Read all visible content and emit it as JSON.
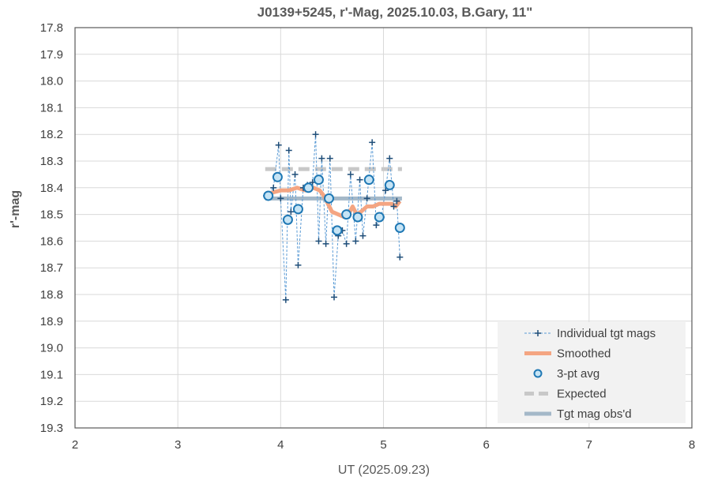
{
  "chart_data": {
    "type": "scatter",
    "title": "J0139+5245, r'-Mag, 2025.10.03, B.Gary, 11\"",
    "xlabel": "UT (2025.09.23)",
    "ylabel": "r'-mag",
    "xlim": [
      2,
      8
    ],
    "ylim": [
      17.8,
      19.3
    ],
    "y_inverted": true,
    "grid": true,
    "x_ticks": [
      "2",
      "3",
      "4",
      "5",
      "6",
      "7",
      "8"
    ],
    "y_ticks": [
      "17.8",
      "17.9",
      "18.0",
      "18.1",
      "18.2",
      "18.3",
      "18.4",
      "18.5",
      "18.6",
      "18.7",
      "18.8",
      "18.9",
      "19.0",
      "19.1",
      "19.2",
      "19.3"
    ],
    "legend_position": "bottom-right",
    "series": [
      {
        "name": "Individual tgt mags",
        "style": "dashed-line-plus-markers",
        "color": "#2e75b6",
        "x": [
          3.86,
          3.93,
          3.98,
          4.0,
          4.05,
          4.08,
          4.1,
          4.14,
          4.17,
          4.22,
          4.26,
          4.31,
          4.34,
          4.37,
          4.4,
          4.44,
          4.48,
          4.52,
          4.56,
          4.6,
          4.64,
          4.68,
          4.73,
          4.77,
          4.8,
          4.84,
          4.89,
          4.93,
          4.98,
          5.02,
          5.06,
          5.1,
          5.13,
          5.16
        ],
        "y": [
          18.43,
          18.4,
          18.24,
          18.44,
          18.82,
          18.26,
          18.49,
          18.35,
          18.69,
          18.4,
          18.39,
          18.38,
          18.2,
          18.6,
          18.29,
          18.61,
          18.29,
          18.81,
          18.58,
          18.56,
          18.61,
          18.35,
          18.6,
          18.37,
          18.58,
          18.44,
          18.23,
          18.54,
          18.51,
          18.41,
          18.29,
          18.47,
          18.45,
          18.66
        ]
      },
      {
        "name": "Smoothed",
        "style": "thick-line",
        "color": "#f4a582",
        "x": [
          3.9,
          4.0,
          4.08,
          4.16,
          4.24,
          4.32,
          4.38,
          4.42,
          4.46,
          4.5,
          4.56,
          4.62,
          4.66,
          4.7,
          4.74,
          4.78,
          4.84,
          4.9,
          4.96,
          5.02,
          5.08,
          5.12,
          5.16
        ],
        "y": [
          18.42,
          18.41,
          18.41,
          18.4,
          18.41,
          18.4,
          18.41,
          18.43,
          18.46,
          18.49,
          18.5,
          18.51,
          18.5,
          18.47,
          18.5,
          18.49,
          18.47,
          18.47,
          18.46,
          18.46,
          18.46,
          18.47,
          18.45
        ]
      },
      {
        "name": "3-pt avg",
        "style": "open-circles",
        "color": "#1f78b4",
        "fill": "#c6e4f5",
        "x": [
          3.88,
          3.97,
          4.07,
          4.17,
          4.27,
          4.37,
          4.47,
          4.55,
          4.64,
          4.75,
          4.86,
          4.96,
          5.06,
          5.16
        ],
        "y": [
          18.43,
          18.36,
          18.52,
          18.48,
          18.4,
          18.37,
          18.44,
          18.56,
          18.5,
          18.51,
          18.37,
          18.51,
          18.39,
          18.55
        ]
      },
      {
        "name": "Expected",
        "style": "dashed-thick-line",
        "color": "#c8c8c8",
        "x": [
          3.85,
          5.18
        ],
        "y": [
          18.33,
          18.33
        ]
      },
      {
        "name": "Tgt mag obs'd",
        "style": "thick-line",
        "color": "#a4b8c8",
        "x": [
          3.85,
          5.18
        ],
        "y": [
          18.44,
          18.44
        ]
      }
    ]
  }
}
